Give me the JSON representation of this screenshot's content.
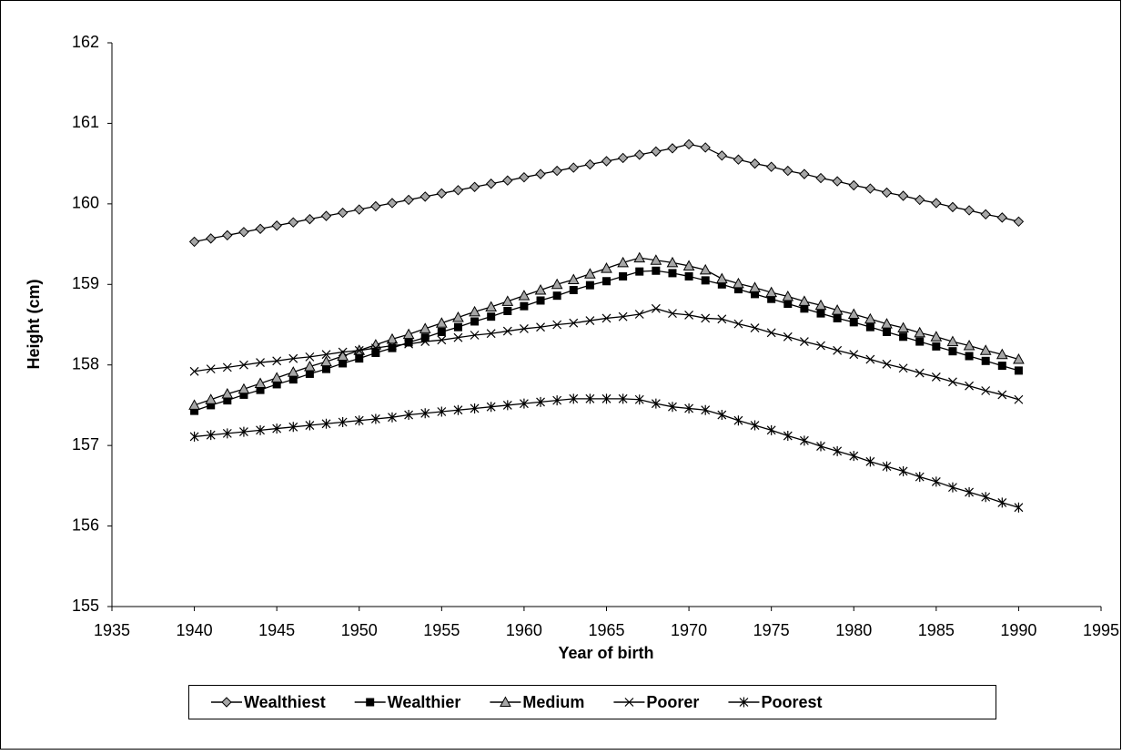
{
  "chart_data": {
    "type": "line",
    "xlabel": "Year of birth",
    "ylabel": "Height (cm)",
    "x": [
      1940,
      1941,
      1942,
      1943,
      1944,
      1945,
      1946,
      1947,
      1948,
      1949,
      1950,
      1951,
      1952,
      1953,
      1954,
      1955,
      1956,
      1957,
      1958,
      1959,
      1960,
      1961,
      1962,
      1963,
      1964,
      1965,
      1966,
      1967,
      1968,
      1969,
      1970,
      1971,
      1972,
      1973,
      1974,
      1975,
      1976,
      1977,
      1978,
      1979,
      1980,
      1981,
      1982,
      1983,
      1984,
      1985,
      1986,
      1987,
      1988,
      1989,
      1990
    ],
    "line_color": "#000000",
    "series": [
      {
        "name": "Wealthiest",
        "color": "#a6a6a6",
        "marker": "diamond",
        "values": [
          159.53,
          159.57,
          159.61,
          159.65,
          159.69,
          159.73,
          159.77,
          159.81,
          159.85,
          159.89,
          159.93,
          159.97,
          160.01,
          160.05,
          160.09,
          160.13,
          160.17,
          160.21,
          160.25,
          160.29,
          160.33,
          160.37,
          160.41,
          160.45,
          160.49,
          160.53,
          160.57,
          160.61,
          160.65,
          160.69,
          160.74,
          160.7,
          160.6,
          160.55,
          160.5,
          160.46,
          160.41,
          160.37,
          160.32,
          160.28,
          160.23,
          160.19,
          160.14,
          160.1,
          160.05,
          160.01,
          159.96,
          159.92,
          159.87,
          159.83,
          159.78
        ]
      },
      {
        "name": "Wealthier",
        "color": "#000000",
        "marker": "square",
        "values": [
          157.43,
          157.5,
          157.56,
          157.63,
          157.69,
          157.76,
          157.82,
          157.89,
          157.95,
          158.02,
          158.08,
          158.15,
          158.21,
          158.28,
          158.34,
          158.41,
          158.47,
          158.54,
          158.6,
          158.67,
          158.73,
          158.8,
          158.86,
          158.93,
          158.99,
          159.04,
          159.1,
          159.16,
          159.17,
          159.14,
          159.1,
          159.05,
          159.0,
          158.94,
          158.88,
          158.82,
          158.76,
          158.7,
          158.64,
          158.58,
          158.53,
          158.47,
          158.41,
          158.35,
          158.29,
          158.23,
          158.17,
          158.11,
          158.05,
          157.99,
          157.93
        ]
      },
      {
        "name": "Medium",
        "color": "#a6a6a6",
        "marker": "triangle",
        "values": [
          157.5,
          157.57,
          157.64,
          157.7,
          157.77,
          157.84,
          157.91,
          157.98,
          158.04,
          158.11,
          158.18,
          158.25,
          158.32,
          158.38,
          158.45,
          158.52,
          158.59,
          158.66,
          158.72,
          158.79,
          158.86,
          158.93,
          159.0,
          159.06,
          159.13,
          159.2,
          159.27,
          159.33,
          159.3,
          159.27,
          159.23,
          159.18,
          159.07,
          159.01,
          158.96,
          158.9,
          158.85,
          158.79,
          158.74,
          158.68,
          158.63,
          158.57,
          158.51,
          158.46,
          158.4,
          158.35,
          158.29,
          158.24,
          158.18,
          158.13,
          158.07
        ]
      },
      {
        "name": "Poorer",
        "color": "#000000",
        "marker": "x",
        "values": [
          157.92,
          157.95,
          157.97,
          158.0,
          158.03,
          158.05,
          158.08,
          158.1,
          158.13,
          158.16,
          158.18,
          158.21,
          158.24,
          158.26,
          158.29,
          158.31,
          158.34,
          158.37,
          158.39,
          158.42,
          158.45,
          158.47,
          158.5,
          158.52,
          158.55,
          158.58,
          158.6,
          158.63,
          158.7,
          158.64,
          158.62,
          158.58,
          158.57,
          158.51,
          158.46,
          158.4,
          158.35,
          158.29,
          158.24,
          158.18,
          158.13,
          158.07,
          158.01,
          157.96,
          157.9,
          157.85,
          157.79,
          157.74,
          157.68,
          157.63,
          157.57
        ]
      },
      {
        "name": "Poorest",
        "color": "#000000",
        "marker": "asterisk",
        "values": [
          157.11,
          157.13,
          157.15,
          157.17,
          157.19,
          157.21,
          157.23,
          157.25,
          157.27,
          157.29,
          157.31,
          157.33,
          157.35,
          157.38,
          157.4,
          157.42,
          157.44,
          157.46,
          157.48,
          157.5,
          157.52,
          157.54,
          157.56,
          157.58,
          157.58,
          157.58,
          157.58,
          157.57,
          157.52,
          157.48,
          157.46,
          157.44,
          157.38,
          157.31,
          157.25,
          157.19,
          157.12,
          157.06,
          156.99,
          156.93,
          156.87,
          156.8,
          156.74,
          156.68,
          156.61,
          156.55,
          156.48,
          156.42,
          156.36,
          156.29,
          156.23
        ]
      }
    ],
    "xlim": [
      1935,
      1995
    ],
    "xticks": [
      1935,
      1940,
      1945,
      1950,
      1955,
      1960,
      1965,
      1970,
      1975,
      1980,
      1985,
      1990,
      1995
    ],
    "ylim": [
      155,
      162
    ],
    "yticks": [
      155,
      156,
      157,
      158,
      159,
      160,
      161,
      162
    ],
    "grid": false,
    "legend": "bottom"
  }
}
